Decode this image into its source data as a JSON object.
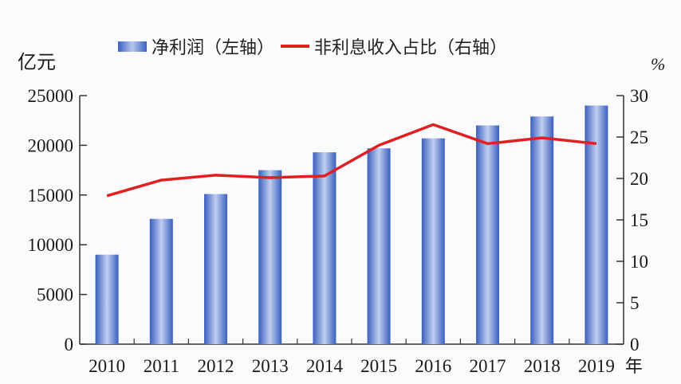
{
  "legend": {
    "bar_label": "净利润（左轴）",
    "line_label": "非利息收入占比（右轴）"
  },
  "axes": {
    "left_unit": "亿元",
    "right_unit": "%",
    "x_suffix": "年"
  },
  "colors": {
    "bar": "#3a62c2",
    "bar_highlight": "#bccbee",
    "line": "#e02020",
    "axis": "#333333"
  },
  "chart_data": {
    "type": "bar",
    "title": "",
    "categories": [
      "2010",
      "2011",
      "2012",
      "2013",
      "2014",
      "2015",
      "2016",
      "2017",
      "2018",
      "2019"
    ],
    "xlabel": "年",
    "ylabel": "亿元",
    "y2label": "%",
    "ylim": [
      0,
      25000
    ],
    "y2lim": [
      0,
      30
    ],
    "yticks": [
      0,
      5000,
      10000,
      15000,
      20000,
      25000
    ],
    "y2ticks": [
      0,
      5,
      10,
      15,
      20,
      25,
      30
    ],
    "legend_position": "top",
    "grid": false,
    "series": [
      {
        "name": "净利润（左轴）",
        "type": "bar",
        "axis": "left",
        "values": [
          9000,
          12600,
          15100,
          17500,
          19300,
          19700,
          20700,
          22000,
          22900,
          24000
        ]
      },
      {
        "name": "非利息收入占比（右轴）",
        "type": "line",
        "axis": "right",
        "values": [
          17.9,
          19.8,
          20.4,
          20.1,
          20.3,
          24.0,
          26.5,
          24.2,
          24.9,
          24.2
        ]
      }
    ]
  }
}
